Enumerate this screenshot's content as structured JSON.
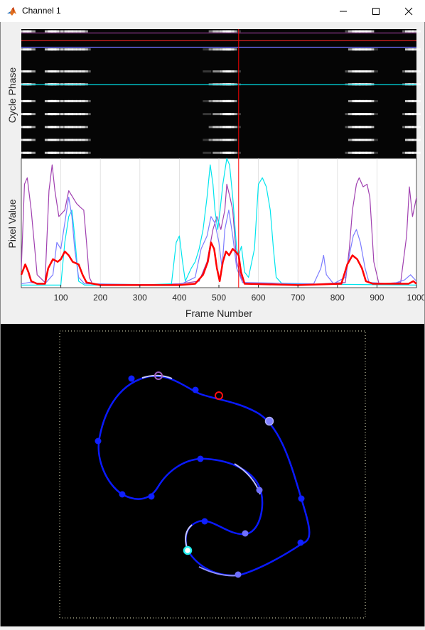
{
  "window": {
    "title": "Channel 1",
    "app_icon": "matlab-icon",
    "controls": [
      "minimize-icon",
      "maximize-icon",
      "close-icon"
    ]
  },
  "top_plot": {
    "ylabel": "Cycle Phase",
    "horizontal_lines": [
      {
        "color": "#a040a0",
        "phase": 0.03
      },
      {
        "color": "#e02020",
        "phase": 0.09
      },
      {
        "color": "#6f6fff",
        "phase": 0.14
      },
      {
        "color": "#00e5ee",
        "phase": 0.43
      }
    ],
    "cursor_frame": 550,
    "cursor_color": "#ff0000"
  },
  "chart_data": {
    "type": "line",
    "xlabel": "Frame Number",
    "ylabel": "Pixel Value",
    "xlim": [
      0,
      1000
    ],
    "xticks": [
      100,
      200,
      300,
      400,
      500,
      600,
      700,
      800,
      900,
      1000
    ],
    "grid": true,
    "cursor_x": 550,
    "series": [
      {
        "color": "#a040b0",
        "points": [
          [
            0,
            15
          ],
          [
            8,
            80
          ],
          [
            15,
            85
          ],
          [
            25,
            60
          ],
          [
            40,
            10
          ],
          [
            60,
            4
          ],
          [
            70,
            75
          ],
          [
            78,
            95
          ],
          [
            85,
            75
          ],
          [
            95,
            55
          ],
          [
            110,
            60
          ],
          [
            120,
            75
          ],
          [
            130,
            70
          ],
          [
            140,
            65
          ],
          [
            150,
            62
          ],
          [
            158,
            60
          ],
          [
            165,
            35
          ],
          [
            172,
            8
          ],
          [
            180,
            3
          ],
          [
            300,
            2
          ],
          [
            400,
            3
          ],
          [
            450,
            5
          ],
          [
            470,
            20
          ],
          [
            485,
            45
          ],
          [
            495,
            55
          ],
          [
            505,
            45
          ],
          [
            515,
            60
          ],
          [
            520,
            80
          ],
          [
            528,
            70
          ],
          [
            535,
            60
          ],
          [
            545,
            20
          ],
          [
            560,
            4
          ],
          [
            700,
            2
          ],
          [
            820,
            4
          ],
          [
            830,
            30
          ],
          [
            838,
            60
          ],
          [
            848,
            80
          ],
          [
            855,
            85
          ],
          [
            865,
            78
          ],
          [
            875,
            80
          ],
          [
            882,
            70
          ],
          [
            892,
            20
          ],
          [
            905,
            3
          ],
          [
            960,
            4
          ],
          [
            975,
            40
          ],
          [
            982,
            78
          ],
          [
            990,
            55
          ],
          [
            1000,
            70
          ]
        ]
      },
      {
        "color": "#00e5ee",
        "points": [
          [
            0,
            2
          ],
          [
            100,
            2
          ],
          [
            110,
            35
          ],
          [
            120,
            55
          ],
          [
            128,
            60
          ],
          [
            135,
            40
          ],
          [
            145,
            5
          ],
          [
            160,
            2
          ],
          [
            300,
            2
          ],
          [
            380,
            3
          ],
          [
            392,
            35
          ],
          [
            400,
            40
          ],
          [
            408,
            20
          ],
          [
            415,
            5
          ],
          [
            430,
            15
          ],
          [
            440,
            20
          ],
          [
            450,
            30
          ],
          [
            460,
            45
          ],
          [
            470,
            70
          ],
          [
            478,
            95
          ],
          [
            485,
            80
          ],
          [
            490,
            60
          ],
          [
            497,
            45
          ],
          [
            503,
            60
          ],
          [
            510,
            80
          ],
          [
            520,
            100
          ],
          [
            527,
            95
          ],
          [
            535,
            70
          ],
          [
            545,
            30
          ],
          [
            550,
            25
          ],
          [
            557,
            32
          ],
          [
            565,
            12
          ],
          [
            575,
            8
          ],
          [
            590,
            30
          ],
          [
            600,
            80
          ],
          [
            610,
            85
          ],
          [
            620,
            78
          ],
          [
            630,
            60
          ],
          [
            638,
            30
          ],
          [
            645,
            8
          ],
          [
            660,
            3
          ],
          [
            1000,
            2
          ]
        ]
      },
      {
        "color": "#7c7cff",
        "points": [
          [
            0,
            3
          ],
          [
            20,
            4
          ],
          [
            60,
            3
          ],
          [
            80,
            10
          ],
          [
            90,
            35
          ],
          [
            100,
            30
          ],
          [
            110,
            50
          ],
          [
            120,
            70
          ],
          [
            128,
            55
          ],
          [
            135,
            30
          ],
          [
            145,
            8
          ],
          [
            160,
            3
          ],
          [
            400,
            2
          ],
          [
            440,
            8
          ],
          [
            455,
            30
          ],
          [
            470,
            40
          ],
          [
            480,
            55
          ],
          [
            490,
            50
          ],
          [
            500,
            35
          ],
          [
            508,
            15
          ],
          [
            515,
            45
          ],
          [
            525,
            60
          ],
          [
            535,
            40
          ],
          [
            545,
            15
          ],
          [
            560,
            4
          ],
          [
            740,
            3
          ],
          [
            758,
            15
          ],
          [
            765,
            25
          ],
          [
            772,
            10
          ],
          [
            790,
            3
          ],
          [
            820,
            8
          ],
          [
            832,
            28
          ],
          [
            840,
            40
          ],
          [
            848,
            45
          ],
          [
            858,
            35
          ],
          [
            870,
            15
          ],
          [
            880,
            4
          ],
          [
            940,
            3
          ],
          [
            970,
            6
          ],
          [
            985,
            10
          ],
          [
            1000,
            5
          ]
        ]
      },
      {
        "color": "#ff0000",
        "width": 2.5,
        "points": [
          [
            0,
            10
          ],
          [
            10,
            18
          ],
          [
            18,
            12
          ],
          [
            25,
            5
          ],
          [
            40,
            3
          ],
          [
            60,
            3
          ],
          [
            68,
            15
          ],
          [
            80,
            22
          ],
          [
            92,
            20
          ],
          [
            100,
            22
          ],
          [
            110,
            28
          ],
          [
            120,
            25
          ],
          [
            130,
            20
          ],
          [
            145,
            18
          ],
          [
            155,
            10
          ],
          [
            165,
            4
          ],
          [
            200,
            2
          ],
          [
            400,
            2
          ],
          [
            440,
            3
          ],
          [
            460,
            10
          ],
          [
            472,
            20
          ],
          [
            480,
            35
          ],
          [
            488,
            30
          ],
          [
            495,
            15
          ],
          [
            502,
            5
          ],
          [
            510,
            20
          ],
          [
            518,
            28
          ],
          [
            526,
            25
          ],
          [
            535,
            30
          ],
          [
            542,
            28
          ],
          [
            550,
            25
          ],
          [
            556,
            12
          ],
          [
            565,
            3
          ],
          [
            700,
            2
          ],
          [
            810,
            3
          ],
          [
            825,
            18
          ],
          [
            838,
            25
          ],
          [
            850,
            22
          ],
          [
            862,
            15
          ],
          [
            872,
            5
          ],
          [
            890,
            3
          ],
          [
            980,
            3
          ],
          [
            992,
            5
          ],
          [
            1000,
            3
          ]
        ]
      }
    ]
  },
  "bottom_view": {
    "curve_color": "#0a1aff",
    "highlight_color": "#c8c8ff",
    "markers": {
      "red_ring": "#ff1010",
      "purple_ring": "#a060c0",
      "cyan_ring": "#20f0f0",
      "lavender_dot": "#9090ff",
      "blue_dot": "#1020ff"
    }
  }
}
